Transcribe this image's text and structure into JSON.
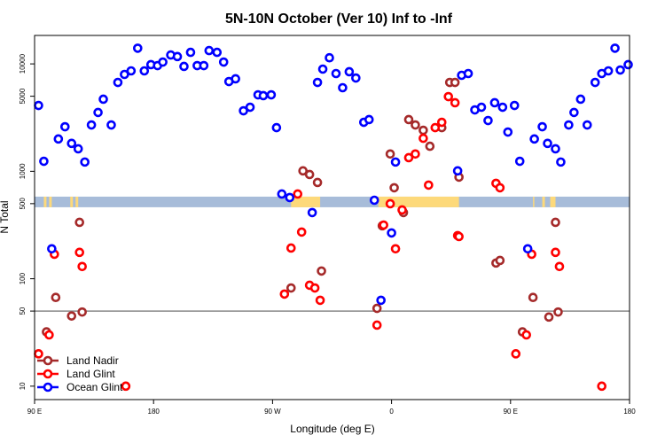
{
  "chart_data": {
    "type": "scatter",
    "title": "5N-10N October (Ver 10)   Inf to -Inf",
    "xlabel": "Longitude (deg E)",
    "ylabel": "N Total",
    "xlim": [
      90,
      540
    ],
    "x_ticks": [
      {
        "value": 90,
        "label": "90 E"
      },
      {
        "value": 180,
        "label": "180"
      },
      {
        "value": 270,
        "label": "90 W"
      },
      {
        "value": 360,
        "label": "0"
      },
      {
        "value": 450,
        "label": "90 E"
      },
      {
        "value": 540,
        "label": "180"
      }
    ],
    "y_scale": "log",
    "ylim": [
      7.5,
      18400
    ],
    "y_ticks": [
      {
        "value": 10,
        "label": "10"
      },
      {
        "value": 50,
        "label": "50"
      },
      {
        "value": 100,
        "label": "100"
      },
      {
        "value": 500,
        "label": "500"
      },
      {
        "value": 1000,
        "label": "1000"
      },
      {
        "value": 5000,
        "label": "5000"
      },
      {
        "value": 10000,
        "label": "10000"
      }
    ],
    "reference_line": {
      "value": 50,
      "color": "#888888"
    },
    "surface_band": {
      "range": [
        463,
        581
      ],
      "ocean_color": "#a7bcd9",
      "land_color": "#fdd97a",
      "land_segments": [
        [
          97,
          99
        ],
        [
          101,
          103
        ],
        [
          117,
          119
        ],
        [
          121,
          123
        ],
        [
          284,
          306
        ],
        [
          350,
          411
        ],
        [
          467,
          468
        ],
        [
          474,
          476
        ],
        [
          480,
          484
        ]
      ]
    },
    "grid": false,
    "legend_position": "bottom-left",
    "series": [
      {
        "name": "Land Nadir",
        "color": "#a52a2a",
        "points": [
          [
            124,
            335
          ],
          [
            106,
            67
          ],
          [
            126,
            49
          ],
          [
            118,
            45
          ],
          [
            99,
            32
          ],
          [
            293,
            1010
          ],
          [
            298,
            934
          ],
          [
            304,
            787
          ],
          [
            307,
            118
          ],
          [
            284,
            82
          ],
          [
            349,
            53
          ],
          [
            359,
            1450
          ],
          [
            362,
            703
          ],
          [
            373,
            3030
          ],
          [
            378,
            2700
          ],
          [
            384,
            2410
          ],
          [
            389,
            1710
          ],
          [
            398,
            2550
          ],
          [
            404,
            6720
          ],
          [
            408,
            6720
          ],
          [
            411,
            883
          ],
          [
            353,
            311
          ],
          [
            369,
            413
          ],
          [
            439,
            140
          ],
          [
            442,
            148
          ],
          [
            467,
            67
          ],
          [
            479,
            44
          ],
          [
            486,
            49
          ],
          [
            459,
            32
          ],
          [
            484,
            335
          ]
        ]
      },
      {
        "name": "Land Glint",
        "color": "#ff0000",
        "points": [
          [
            105,
            169
          ],
          [
            124,
            176
          ],
          [
            126,
            130
          ],
          [
            101,
            30
          ],
          [
            93,
            20
          ],
          [
            159,
            10
          ],
          [
            289,
            615
          ],
          [
            292,
            272
          ],
          [
            284,
            193
          ],
          [
            298,
            87
          ],
          [
            302,
            82
          ],
          [
            279,
            72
          ],
          [
            306,
            63
          ],
          [
            359,
            499
          ],
          [
            368,
            437
          ],
          [
            354,
            316
          ],
          [
            363,
            190
          ],
          [
            349,
            37
          ],
          [
            388,
            744
          ],
          [
            410,
            252
          ],
          [
            384,
            2030
          ],
          [
            373,
            1340
          ],
          [
            378,
            1450
          ],
          [
            393,
            2550
          ],
          [
            398,
            2860
          ],
          [
            403,
            4960
          ],
          [
            408,
            4350
          ],
          [
            439,
            773
          ],
          [
            442,
            703
          ],
          [
            411,
            247
          ],
          [
            466,
            169
          ],
          [
            484,
            176
          ],
          [
            487,
            130
          ],
          [
            462,
            30
          ],
          [
            454,
            20
          ],
          [
            519,
            10
          ]
        ]
      },
      {
        "name": "Ocean Glint",
        "color": "#0000ff",
        "points": [
          [
            93,
            4100
          ],
          [
            97,
            1240
          ],
          [
            103,
            190
          ],
          [
            108,
            2000
          ],
          [
            113,
            2600
          ],
          [
            118,
            1820
          ],
          [
            123,
            1620
          ],
          [
            128,
            1220
          ],
          [
            133,
            2700
          ],
          [
            138,
            3530
          ],
          [
            142,
            4690
          ],
          [
            148,
            2700
          ],
          [
            153,
            6720
          ],
          [
            158,
            7980
          ],
          [
            163,
            8610
          ],
          [
            168,
            14000
          ],
          [
            173,
            8610
          ],
          [
            178,
            9840
          ],
          [
            183,
            9640
          ],
          [
            187,
            10400
          ],
          [
            193,
            12100
          ],
          [
            198,
            11700
          ],
          [
            203,
            9470
          ],
          [
            208,
            12800
          ],
          [
            213,
            9640
          ],
          [
            218,
            9640
          ],
          [
            222,
            13300
          ],
          [
            228,
            12800
          ],
          [
            233,
            10400
          ],
          [
            237,
            6850
          ],
          [
            242,
            7260
          ],
          [
            248,
            3660
          ],
          [
            253,
            3950
          ],
          [
            259,
            5150
          ],
          [
            263,
            5060
          ],
          [
            269,
            5150
          ],
          [
            273,
            2550
          ],
          [
            277,
            615
          ],
          [
            283,
            570
          ],
          [
            300,
            413
          ],
          [
            304,
            6720
          ],
          [
            308,
            8940
          ],
          [
            313,
            11400
          ],
          [
            318,
            8130
          ],
          [
            323,
            6000
          ],
          [
            328,
            8450
          ],
          [
            333,
            7390
          ],
          [
            339,
            2860
          ],
          [
            343,
            3030
          ],
          [
            347,
            538
          ],
          [
            352,
            63
          ],
          [
            360,
            267
          ],
          [
            363,
            1220
          ],
          [
            410,
            1010
          ],
          [
            413,
            7830
          ],
          [
            418,
            8130
          ],
          [
            423,
            3730
          ],
          [
            428,
            3950
          ],
          [
            433,
            2970
          ],
          [
            438,
            4350
          ],
          [
            444,
            3950
          ],
          [
            448,
            2320
          ],
          [
            453,
            4100
          ],
          [
            457,
            1240
          ],
          [
            463,
            190
          ],
          [
            468,
            2000
          ],
          [
            474,
            2600
          ],
          [
            478,
            1820
          ],
          [
            484,
            1620
          ],
          [
            488,
            1220
          ],
          [
            494,
            2700
          ],
          [
            498,
            3530
          ],
          [
            503,
            4690
          ],
          [
            508,
            2700
          ],
          [
            514,
            6720
          ],
          [
            519,
            8130
          ],
          [
            524,
            8610
          ],
          [
            529,
            14000
          ],
          [
            533,
            8770
          ],
          [
            539,
            9840
          ]
        ]
      }
    ]
  }
}
